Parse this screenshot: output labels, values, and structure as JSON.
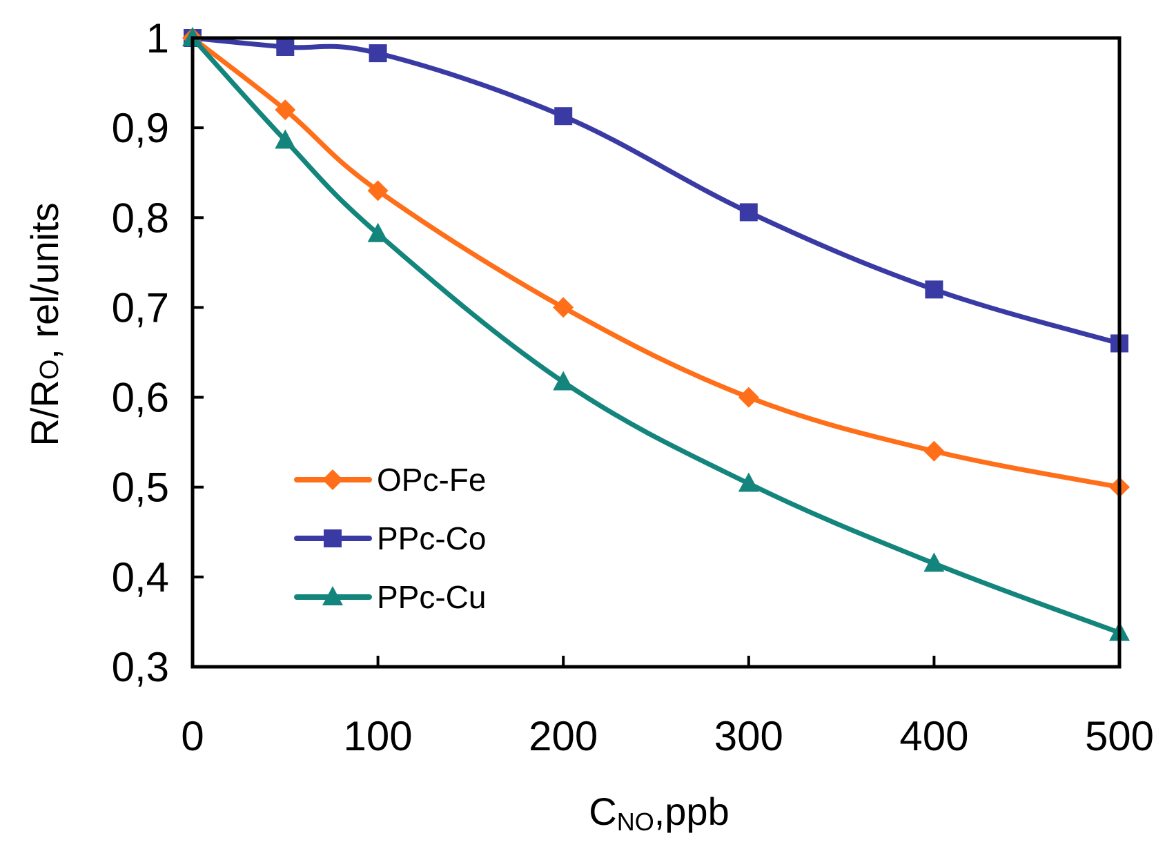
{
  "chart_data": {
    "type": "line",
    "xlabel": {
      "main": "C",
      "sub": "NO",
      "rest": ",ppb"
    },
    "ylabel": {
      "pre": "R/R",
      "sub": "O",
      "rest": ", rel/units"
    },
    "xlim": [
      0,
      500
    ],
    "ylim": [
      0.3,
      1.0
    ],
    "x_ticks": [
      0,
      100,
      200,
      300,
      400,
      500
    ],
    "x_tick_labels": [
      "0",
      "100",
      "200",
      "300",
      "400",
      "500"
    ],
    "y_ticks": [
      0.3,
      0.4,
      0.5,
      0.6,
      0.7,
      0.8,
      0.9,
      1.0
    ],
    "y_tick_labels": [
      "0,3",
      "0,4",
      "0,5",
      "0,6",
      "0,7",
      "0,8",
      "0,9",
      "1"
    ],
    "grid": false,
    "legend_position": "lower-left",
    "series": [
      {
        "name": "OPc-Fe",
        "color": "#ff6f1a",
        "marker": "diamond",
        "x": [
          0,
          50,
          100,
          200,
          300,
          400,
          500
        ],
        "y": [
          1.0,
          0.92,
          0.83,
          0.7,
          0.6,
          0.54,
          0.5
        ]
      },
      {
        "name": "PPc-Co",
        "color": "#3a3aa5",
        "marker": "square",
        "x": [
          0,
          50,
          100,
          200,
          300,
          400,
          500
        ],
        "y": [
          1.0,
          0.99,
          0.983,
          0.913,
          0.806,
          0.72,
          0.66
        ]
      },
      {
        "name": "PPc-Cu",
        "color": "#13857c",
        "marker": "triangle",
        "x": [
          0,
          50,
          100,
          200,
          300,
          400,
          500
        ],
        "y": [
          1.0,
          0.886,
          0.782,
          0.617,
          0.504,
          0.415,
          0.338
        ]
      }
    ]
  }
}
